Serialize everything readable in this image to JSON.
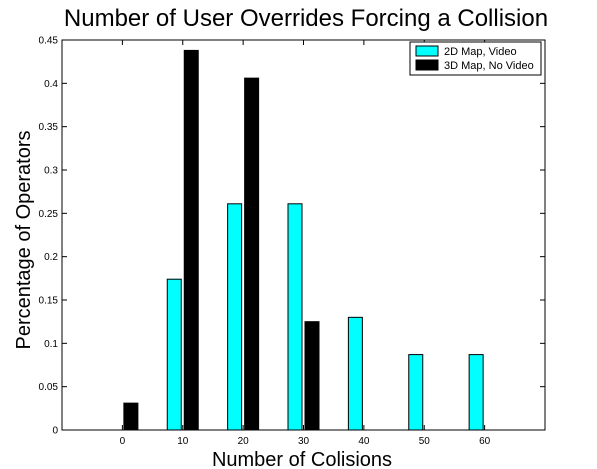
{
  "chart_data": {
    "type": "bar",
    "title": "Number of User Overrides Forcing a Collision",
    "xlabel": "Number of Colisions",
    "ylabel": "Percentage of Operators",
    "categories": [
      0,
      10,
      20,
      30,
      40,
      50,
      60
    ],
    "xlim": [
      -10,
      70
    ],
    "ylim": [
      0,
      0.45
    ],
    "yticks": [
      0,
      0.05,
      0.1,
      0.15,
      0.2,
      0.25,
      0.3,
      0.35,
      0.4,
      0.45
    ],
    "ytick_labels": [
      "0",
      "0.05",
      "0.1",
      "0.15",
      "0.2",
      "0.25",
      "0.3",
      "0.35",
      "0.4",
      "0.45"
    ],
    "xtick_labels": [
      "0",
      "10",
      "20",
      "30",
      "40",
      "50",
      "60"
    ],
    "grid": false,
    "legend_position": "top-right",
    "series": [
      {
        "name": "2D Map, Video",
        "color": "#00ffff",
        "values": [
          0,
          0.174,
          0.261,
          0.261,
          0.13,
          0.087,
          0.087
        ]
      },
      {
        "name": "3D Map, No Video",
        "color": "#000000",
        "values": [
          0.031,
          0.438,
          0.406,
          0.125,
          0,
          0,
          0
        ]
      }
    ]
  }
}
